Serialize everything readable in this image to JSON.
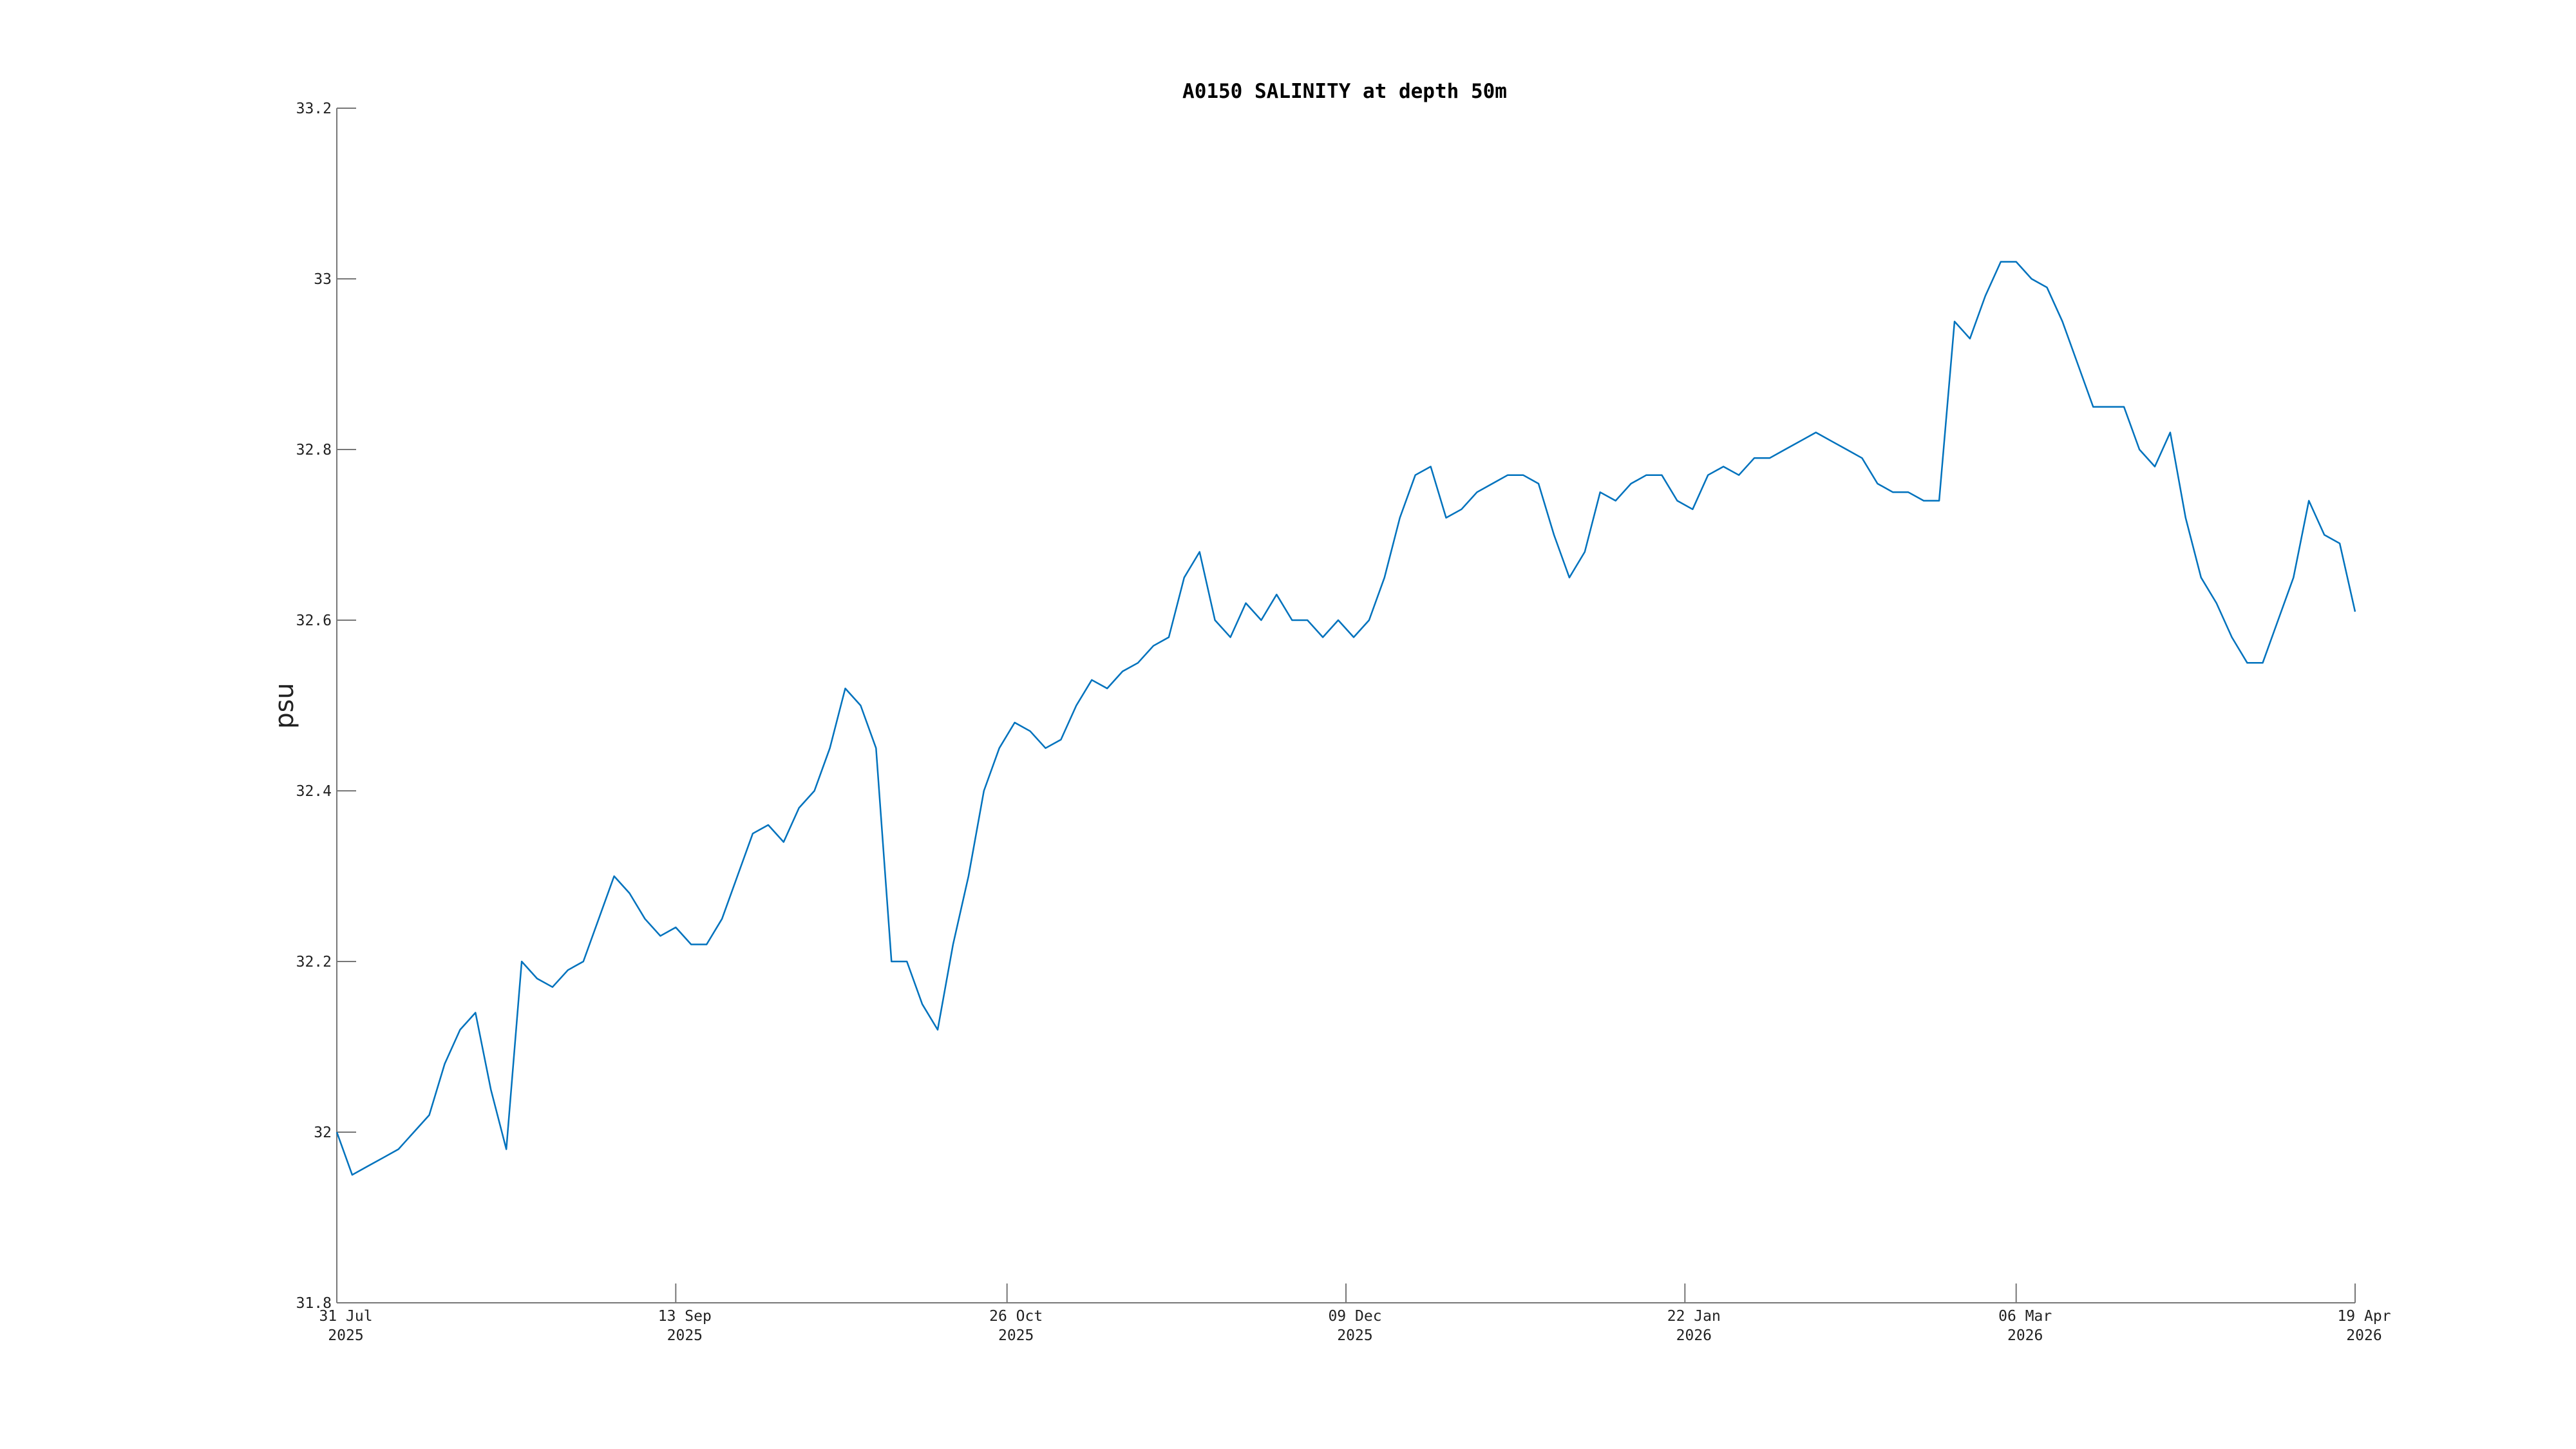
{
  "chart_data": {
    "type": "line",
    "title": "A0150 SALINITY at depth 50m",
    "y_label": "psu",
    "ylim": [
      31.8,
      33.2
    ],
    "yticks": [
      31.8,
      32,
      32.2,
      32.4,
      32.6,
      32.8,
      33,
      33.2
    ],
    "xlim": [
      "2025-07-31",
      "2026-04-19"
    ],
    "xticks": [
      {
        "value": "2025-07-31",
        "label": [
          "31 Jul",
          "2025"
        ]
      },
      {
        "value": "2025-09-13",
        "label": [
          "13 Sep",
          "2025"
        ]
      },
      {
        "value": "2025-10-26",
        "label": [
          "26 Oct",
          "2025"
        ]
      },
      {
        "value": "2025-12-09",
        "label": [
          "09 Dec",
          "2025"
        ]
      },
      {
        "value": "2026-01-22",
        "label": [
          "22 Jan",
          "2026"
        ]
      },
      {
        "value": "2026-03-06",
        "label": [
          "06 Mar",
          "2026"
        ]
      },
      {
        "value": "2026-04-19",
        "label": [
          "19 Apr",
          "2026"
        ]
      }
    ],
    "x": [
      "2025-07-31",
      "2025-08-02",
      "2025-08-04",
      "2025-08-06",
      "2025-08-08",
      "2025-08-10",
      "2025-08-12",
      "2025-08-14",
      "2025-08-16",
      "2025-08-18",
      "2025-08-20",
      "2025-08-22",
      "2025-08-24",
      "2025-08-26",
      "2025-08-28",
      "2025-08-30",
      "2025-09-01",
      "2025-09-03",
      "2025-09-05",
      "2025-09-07",
      "2025-09-09",
      "2025-09-11",
      "2025-09-13",
      "2025-09-15",
      "2025-09-17",
      "2025-09-19",
      "2025-09-21",
      "2025-09-23",
      "2025-09-25",
      "2025-09-27",
      "2025-09-29",
      "2025-10-01",
      "2025-10-03",
      "2025-10-05",
      "2025-10-07",
      "2025-10-09",
      "2025-10-11",
      "2025-10-13",
      "2025-10-15",
      "2025-10-17",
      "2025-10-19",
      "2025-10-21",
      "2025-10-23",
      "2025-10-25",
      "2025-10-27",
      "2025-10-29",
      "2025-10-31",
      "2025-11-02",
      "2025-11-04",
      "2025-11-06",
      "2025-11-08",
      "2025-11-10",
      "2025-11-12",
      "2025-11-14",
      "2025-11-16",
      "2025-11-18",
      "2025-11-20",
      "2025-11-22",
      "2025-11-24",
      "2025-11-26",
      "2025-11-28",
      "2025-11-30",
      "2025-12-02",
      "2025-12-04",
      "2025-12-06",
      "2025-12-08",
      "2025-12-10",
      "2025-12-12",
      "2025-12-14",
      "2025-12-16",
      "2025-12-18",
      "2025-12-20",
      "2025-12-22",
      "2025-12-24",
      "2025-12-26",
      "2025-12-28",
      "2025-12-30",
      "2026-01-01",
      "2026-01-03",
      "2026-01-05",
      "2026-01-07",
      "2026-01-09",
      "2026-01-11",
      "2026-01-13",
      "2026-01-15",
      "2026-01-17",
      "2026-01-19",
      "2026-01-21",
      "2026-01-23",
      "2026-01-25",
      "2026-01-27",
      "2026-01-29",
      "2026-01-31",
      "2026-02-02",
      "2026-02-04",
      "2026-02-06",
      "2026-02-08",
      "2026-02-10",
      "2026-02-12",
      "2026-02-14",
      "2026-02-16",
      "2026-02-18",
      "2026-02-20",
      "2026-02-22",
      "2026-02-24",
      "2026-02-26",
      "2026-02-28",
      "2026-03-02",
      "2026-03-04",
      "2026-03-06",
      "2026-03-08",
      "2026-03-10",
      "2026-03-12",
      "2026-03-14",
      "2026-03-16",
      "2026-03-18",
      "2026-03-20",
      "2026-03-22",
      "2026-03-24",
      "2026-03-26",
      "2026-03-28",
      "2026-03-30",
      "2026-04-01",
      "2026-04-03",
      "2026-04-05",
      "2026-04-07",
      "2026-04-09",
      "2026-04-11",
      "2026-04-13",
      "2026-04-15",
      "2026-04-17",
      "2026-04-19"
    ],
    "series": [
      {
        "color": "#0072bd",
        "values": [
          32.0,
          31.95,
          31.96,
          31.97,
          31.98,
          32.0,
          32.02,
          32.08,
          32.12,
          32.14,
          32.05,
          31.98,
          32.2,
          32.18,
          32.17,
          32.19,
          32.2,
          32.25,
          32.3,
          32.28,
          32.25,
          32.23,
          32.24,
          32.22,
          32.22,
          32.25,
          32.3,
          32.35,
          32.36,
          32.34,
          32.38,
          32.4,
          32.45,
          32.52,
          32.5,
          32.45,
          32.2,
          32.2,
          32.15,
          32.12,
          32.22,
          32.3,
          32.4,
          32.45,
          32.48,
          32.47,
          32.45,
          32.46,
          32.5,
          32.53,
          32.52,
          32.54,
          32.55,
          32.57,
          32.58,
          32.65,
          32.68,
          32.6,
          32.58,
          32.62,
          32.6,
          32.63,
          32.6,
          32.6,
          32.58,
          32.6,
          32.58,
          32.6,
          32.65,
          32.72,
          32.77,
          32.78,
          32.72,
          32.73,
          32.75,
          32.76,
          32.77,
          32.77,
          32.76,
          32.7,
          32.65,
          32.68,
          32.75,
          32.74,
          32.76,
          32.77,
          32.77,
          32.74,
          32.73,
          32.77,
          32.78,
          32.77,
          32.79,
          32.79,
          32.8,
          32.81,
          32.82,
          32.81,
          32.8,
          32.79,
          32.76,
          32.75,
          32.75,
          32.74,
          32.74,
          32.95,
          32.93,
          32.98,
          33.02,
          33.02,
          33.0,
          32.99,
          32.95,
          32.9,
          32.85,
          32.85,
          32.85,
          32.8,
          32.78,
          32.82,
          32.72,
          32.65,
          32.62,
          32.58,
          32.55,
          32.55,
          32.6,
          32.65,
          32.74,
          32.7,
          32.69,
          32.61
        ]
      }
    ]
  }
}
